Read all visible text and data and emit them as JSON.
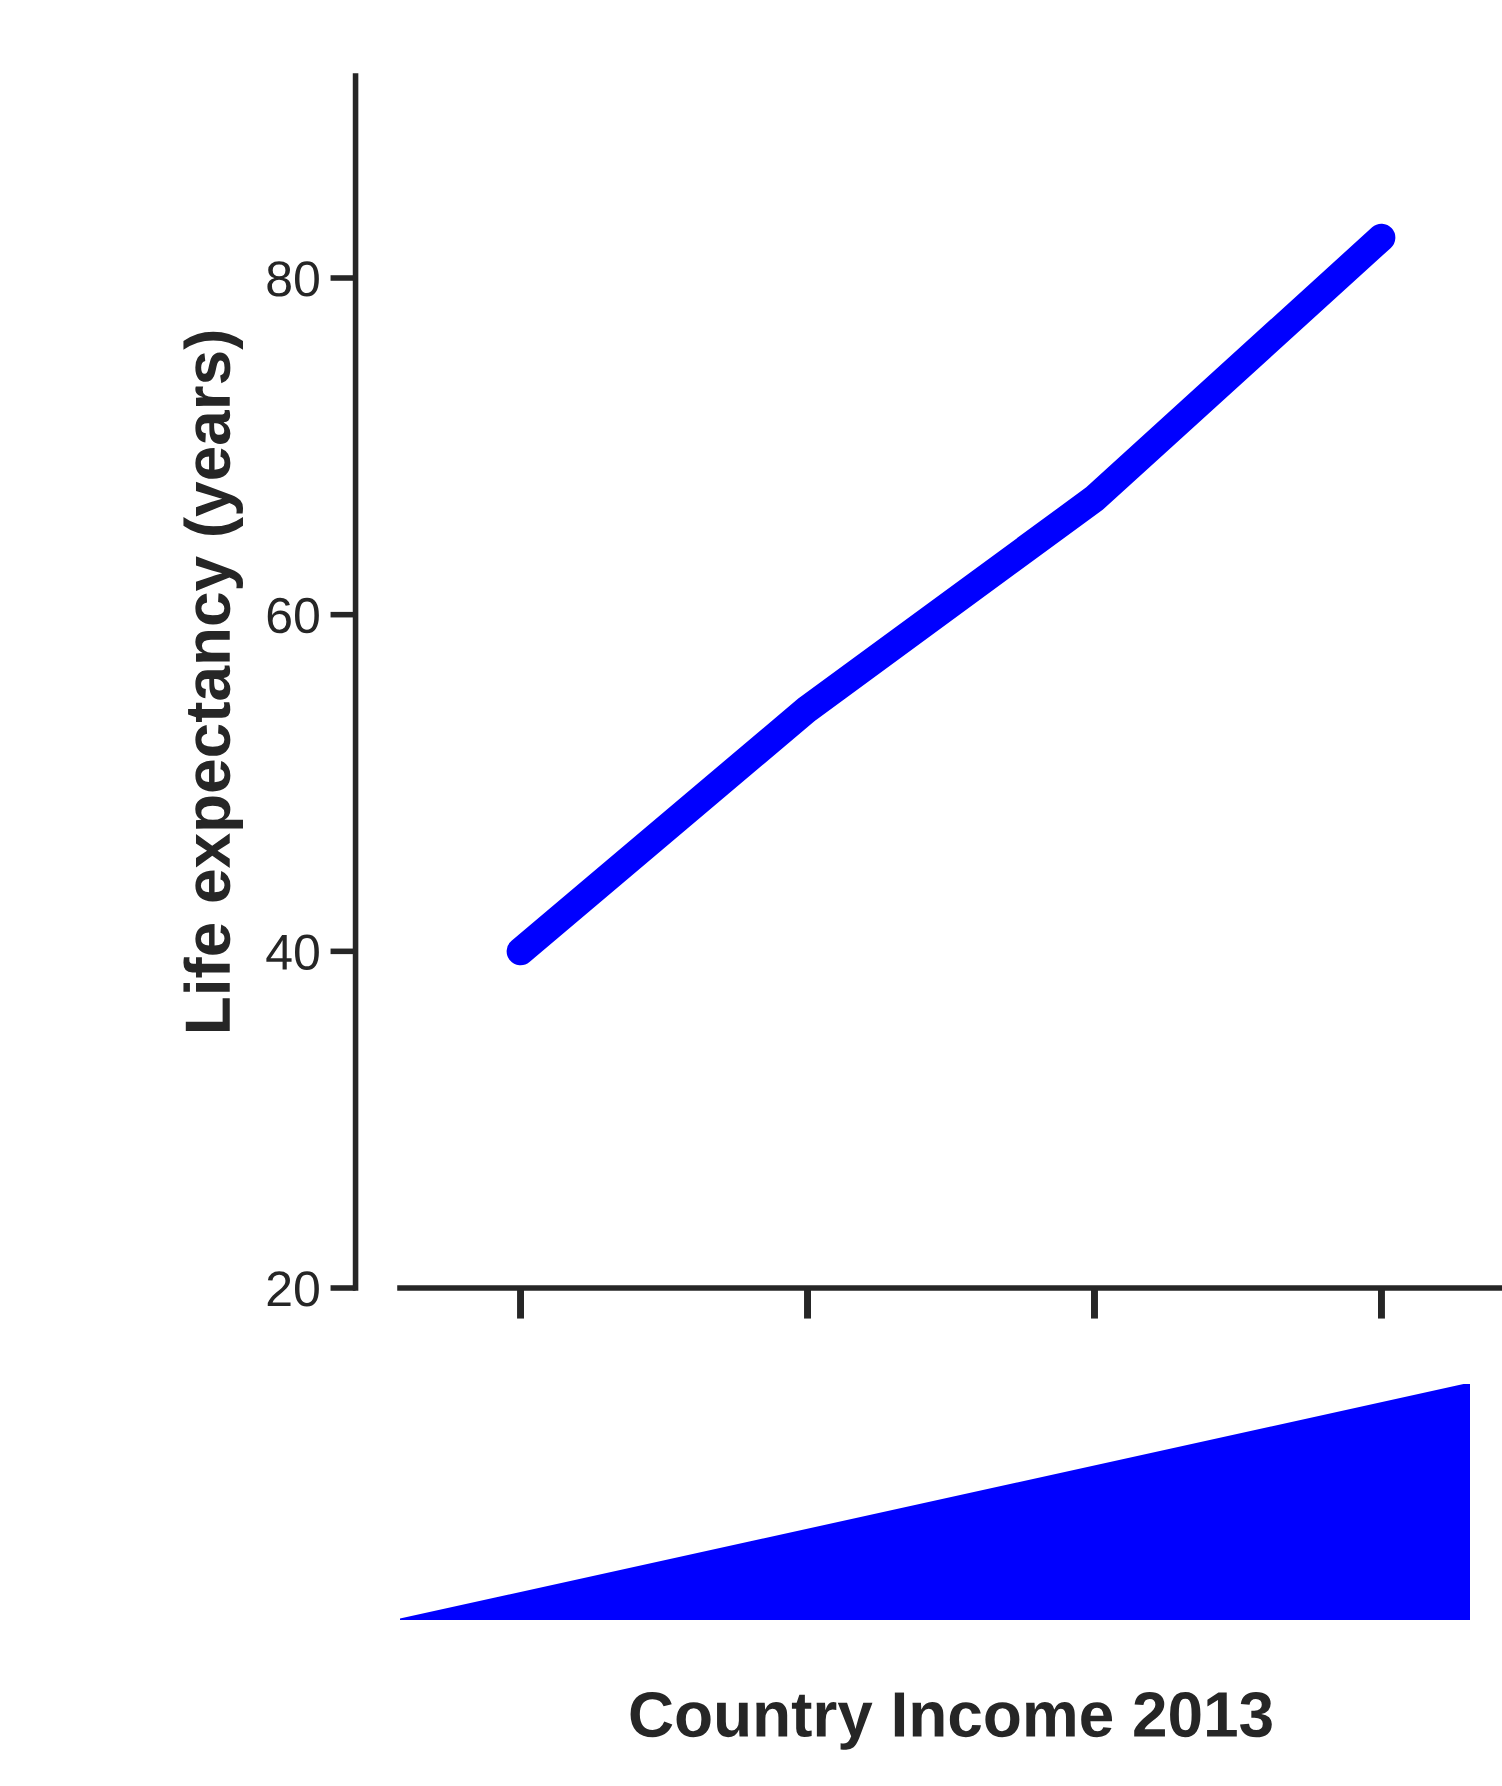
{
  "chart_data": {
    "type": "line",
    "annotations": [
      "Country Income 2013"
    ],
    "ylabel": "Life expectancy (years)",
    "categories": [
      null,
      null,
      null,
      null
    ],
    "series": [
      {
        "color": "#0000ff",
        "values": [
          40,
          54.4,
          66.9,
          82.4
        ]
      }
    ],
    "ylim": [
      20,
      92
    ],
    "yticks": [
      20,
      40,
      60,
      80
    ],
    "grid": false,
    "legend": false,
    "marker": "none",
    "line_style": "solid"
  }
}
